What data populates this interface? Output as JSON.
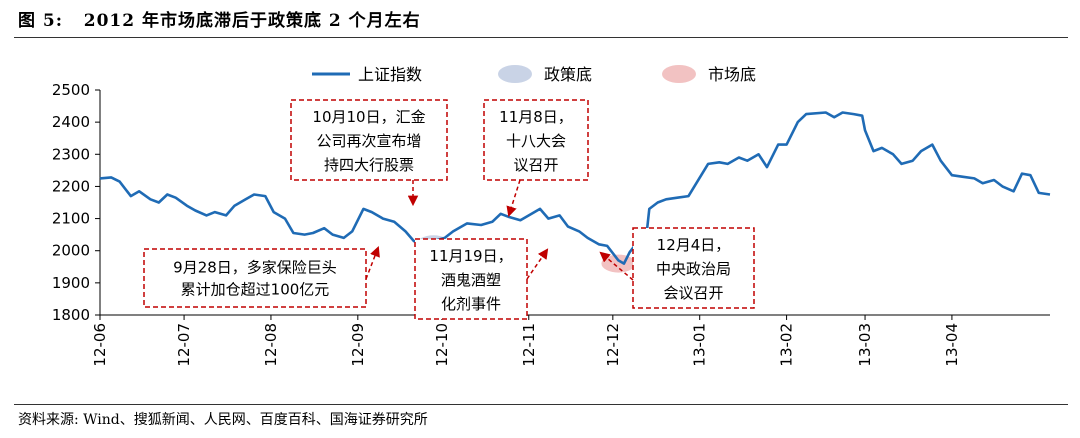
{
  "figure": {
    "title": "图 5:   2012 年市场底滞后于政策底 2 个月左右",
    "source": "资料来源: Wind、搜狐新闻、人民网、百度百科、国海证券研究所"
  },
  "colors": {
    "line": "#1f6bb5",
    "policy_bottom": "#c9d3e6",
    "market_bottom": "#f2c2c2",
    "annotation": "#c00000",
    "axis": "#000000"
  },
  "chart_data": {
    "type": "line",
    "xlabel": "",
    "ylabel": "",
    "ylim": [
      1800,
      2500
    ],
    "yticks": [
      1800,
      1900,
      2000,
      2100,
      2200,
      2300,
      2400,
      2500
    ],
    "xticks": [
      "12-06",
      "12-07",
      "12-08",
      "12-09",
      "12-10",
      "12-11",
      "12-12",
      "13-01",
      "13-02",
      "13-03",
      "13-04"
    ],
    "grid": false,
    "legend_position": "top",
    "legend": [
      {
        "label": "上证指数",
        "kind": "line"
      },
      {
        "label": "政策底",
        "kind": "ellipse-blue"
      },
      {
        "label": "市场底",
        "kind": "ellipse-red"
      }
    ],
    "series": [
      {
        "name": "上证指数",
        "points": [
          [
            "12-06-01",
            2225
          ],
          [
            "12-06-05",
            2228
          ],
          [
            "12-06-08",
            2215
          ],
          [
            "12-06-12",
            2170
          ],
          [
            "12-06-15",
            2185
          ],
          [
            "12-06-19",
            2160
          ],
          [
            "12-06-22",
            2150
          ],
          [
            "12-06-25",
            2175
          ],
          [
            "12-06-28",
            2165
          ],
          [
            "12-07-02",
            2140
          ],
          [
            "12-07-05",
            2125
          ],
          [
            "12-07-09",
            2110
          ],
          [
            "12-07-12",
            2120
          ],
          [
            "12-07-16",
            2110
          ],
          [
            "12-07-19",
            2140
          ],
          [
            "12-07-23",
            2160
          ],
          [
            "12-07-26",
            2175
          ],
          [
            "12-07-30",
            2170
          ],
          [
            "12-08-02",
            2120
          ],
          [
            "12-08-06",
            2100
          ],
          [
            "12-08-09",
            2055
          ],
          [
            "12-08-13",
            2050
          ],
          [
            "12-08-16",
            2055
          ],
          [
            "12-08-20",
            2070
          ],
          [
            "12-08-23",
            2050
          ],
          [
            "12-08-27",
            2040
          ],
          [
            "12-08-30",
            2060
          ],
          [
            "12-09-03",
            2130
          ],
          [
            "12-09-06",
            2120
          ],
          [
            "12-09-10",
            2100
          ],
          [
            "12-09-14",
            2090
          ],
          [
            "12-09-18",
            2060
          ],
          [
            "12-09-21",
            2030
          ],
          [
            "12-09-25",
            2020
          ],
          [
            "12-09-28",
            2030
          ],
          [
            "12-10-02",
            2040
          ],
          [
            "12-10-05",
            2060
          ],
          [
            "12-10-10",
            2085
          ],
          [
            "12-10-15",
            2080
          ],
          [
            "12-10-19",
            2090
          ],
          [
            "12-10-22",
            2115
          ],
          [
            "12-10-25",
            2105
          ],
          [
            "12-10-29",
            2095
          ],
          [
            "12-11-01",
            2110
          ],
          [
            "12-11-05",
            2130
          ],
          [
            "12-11-08",
            2100
          ],
          [
            "12-11-12",
            2110
          ],
          [
            "12-11-15",
            2075
          ],
          [
            "12-11-19",
            2060
          ],
          [
            "12-11-22",
            2040
          ],
          [
            "12-11-26",
            2020
          ],
          [
            "12-11-29",
            2015
          ],
          [
            "12-12-03",
            1970
          ],
          [
            "12-12-05",
            1960
          ],
          [
            "12-12-07",
            1995
          ],
          [
            "12-12-10",
            2030
          ],
          [
            "12-12-13",
            2050
          ],
          [
            "12-12-14",
            2130
          ],
          [
            "12-12-17",
            2150
          ],
          [
            "12-12-20",
            2160
          ],
          [
            "12-12-24",
            2165
          ],
          [
            "12-12-28",
            2170
          ],
          [
            "13-01-04",
            2270
          ],
          [
            "13-01-08",
            2275
          ],
          [
            "13-01-11",
            2270
          ],
          [
            "13-01-15",
            2290
          ],
          [
            "13-01-18",
            2280
          ],
          [
            "13-01-22",
            2300
          ],
          [
            "13-01-25",
            2260
          ],
          [
            "13-01-29",
            2330
          ],
          [
            "13-02-01",
            2330
          ],
          [
            "13-02-05",
            2400
          ],
          [
            "13-02-08",
            2425
          ],
          [
            "13-02-15",
            2430
          ],
          [
            "13-02-18",
            2415
          ],
          [
            "13-02-21",
            2430
          ],
          [
            "13-02-25",
            2425
          ],
          [
            "13-02-28",
            2420
          ],
          [
            "13-03-01",
            2375
          ],
          [
            "13-03-04",
            2310
          ],
          [
            "13-03-07",
            2320
          ],
          [
            "13-03-11",
            2300
          ],
          [
            "13-03-14",
            2270
          ],
          [
            "13-03-18",
            2280
          ],
          [
            "13-03-21",
            2310
          ],
          [
            "13-03-25",
            2330
          ],
          [
            "13-03-28",
            2280
          ],
          [
            "13-04-01",
            2235
          ],
          [
            "13-04-05",
            2230
          ],
          [
            "13-04-09",
            2225
          ],
          [
            "13-04-12",
            2210
          ],
          [
            "13-04-16",
            2220
          ],
          [
            "13-04-19",
            2200
          ],
          [
            "13-04-23",
            2185
          ],
          [
            "13-04-26",
            2240
          ],
          [
            "13-04-29",
            2235
          ],
          [
            "13-05-02",
            2180
          ],
          [
            "13-05-06",
            2175
          ]
        ]
      }
    ],
    "highlights": [
      {
        "label": "政策底",
        "date": "12-09-28",
        "value": 2020
      },
      {
        "label": "市场底",
        "date": "12-12-03",
        "value": 1960
      }
    ],
    "annotations": [
      {
        "id": "a1",
        "lines": [
          "10月10日，汇金",
          "公司再次宣布增",
          "持四大行股票"
        ],
        "target_date": "12-10-10",
        "target_value": 2085
      },
      {
        "id": "a2",
        "lines": [
          "11月8日，",
          "十八大会",
          "议召开"
        ],
        "target_date": "12-11-08",
        "target_value": 2100
      },
      {
        "id": "a3",
        "lines": [
          "9月28日，多家保险巨头",
          "累计加仓超过100亿元"
        ],
        "target_date": "12-09-28",
        "target_value": 2020
      },
      {
        "id": "a4",
        "lines": [
          "11月19日，",
          "酒鬼酒塑",
          "化剂事件"
        ],
        "target_date": "12-11-19",
        "target_value": 2010
      },
      {
        "id": "a5",
        "lines": [
          "12月4日，",
          "中央政治局",
          "会议召开"
        ],
        "target_date": "12-12-04",
        "target_value": 1968
      }
    ]
  }
}
